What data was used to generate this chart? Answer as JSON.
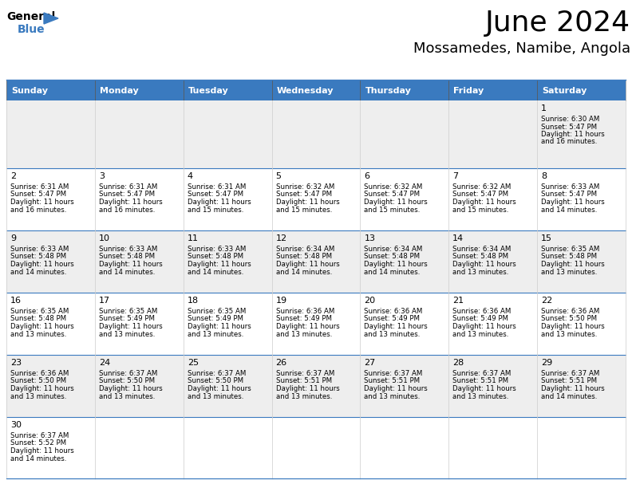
{
  "title": "June 2024",
  "subtitle": "Mossamedes, Namibe, Angola",
  "header_color": "#3a7abf",
  "header_text_color": "#ffffff",
  "days_of_week": [
    "Sunday",
    "Monday",
    "Tuesday",
    "Wednesday",
    "Thursday",
    "Friday",
    "Saturday"
  ],
  "row1_bg": "#eeeeee",
  "row2_bg": "#ffffff",
  "border_color": "#3a7abf",
  "cell_border_color": "#cccccc",
  "title_fontsize": 26,
  "subtitle_fontsize": 13,
  "header_fontsize": 8,
  "cell_fontsize": 6.2,
  "day_num_fontsize": 8,
  "calendar": [
    [
      {
        "day": null,
        "sunrise": null,
        "sunset": null,
        "daylight": null
      },
      {
        "day": null,
        "sunrise": null,
        "sunset": null,
        "daylight": null
      },
      {
        "day": null,
        "sunrise": null,
        "sunset": null,
        "daylight": null
      },
      {
        "day": null,
        "sunrise": null,
        "sunset": null,
        "daylight": null
      },
      {
        "day": null,
        "sunrise": null,
        "sunset": null,
        "daylight": null
      },
      {
        "day": null,
        "sunrise": null,
        "sunset": null,
        "daylight": null
      },
      {
        "day": 1,
        "sunrise": "6:30 AM",
        "sunset": "5:47 PM",
        "daylight": "11 hours\nand 16 minutes."
      }
    ],
    [
      {
        "day": 2,
        "sunrise": "6:31 AM",
        "sunset": "5:47 PM",
        "daylight": "11 hours\nand 16 minutes."
      },
      {
        "day": 3,
        "sunrise": "6:31 AM",
        "sunset": "5:47 PM",
        "daylight": "11 hours\nand 16 minutes."
      },
      {
        "day": 4,
        "sunrise": "6:31 AM",
        "sunset": "5:47 PM",
        "daylight": "11 hours\nand 15 minutes."
      },
      {
        "day": 5,
        "sunrise": "6:32 AM",
        "sunset": "5:47 PM",
        "daylight": "11 hours\nand 15 minutes."
      },
      {
        "day": 6,
        "sunrise": "6:32 AM",
        "sunset": "5:47 PM",
        "daylight": "11 hours\nand 15 minutes."
      },
      {
        "day": 7,
        "sunrise": "6:32 AM",
        "sunset": "5:47 PM",
        "daylight": "11 hours\nand 15 minutes."
      },
      {
        "day": 8,
        "sunrise": "6:33 AM",
        "sunset": "5:47 PM",
        "daylight": "11 hours\nand 14 minutes."
      }
    ],
    [
      {
        "day": 9,
        "sunrise": "6:33 AM",
        "sunset": "5:48 PM",
        "daylight": "11 hours\nand 14 minutes."
      },
      {
        "day": 10,
        "sunrise": "6:33 AM",
        "sunset": "5:48 PM",
        "daylight": "11 hours\nand 14 minutes."
      },
      {
        "day": 11,
        "sunrise": "6:33 AM",
        "sunset": "5:48 PM",
        "daylight": "11 hours\nand 14 minutes."
      },
      {
        "day": 12,
        "sunrise": "6:34 AM",
        "sunset": "5:48 PM",
        "daylight": "11 hours\nand 14 minutes."
      },
      {
        "day": 13,
        "sunrise": "6:34 AM",
        "sunset": "5:48 PM",
        "daylight": "11 hours\nand 14 minutes."
      },
      {
        "day": 14,
        "sunrise": "6:34 AM",
        "sunset": "5:48 PM",
        "daylight": "11 hours\nand 13 minutes."
      },
      {
        "day": 15,
        "sunrise": "6:35 AM",
        "sunset": "5:48 PM",
        "daylight": "11 hours\nand 13 minutes."
      }
    ],
    [
      {
        "day": 16,
        "sunrise": "6:35 AM",
        "sunset": "5:48 PM",
        "daylight": "11 hours\nand 13 minutes."
      },
      {
        "day": 17,
        "sunrise": "6:35 AM",
        "sunset": "5:49 PM",
        "daylight": "11 hours\nand 13 minutes."
      },
      {
        "day": 18,
        "sunrise": "6:35 AM",
        "sunset": "5:49 PM",
        "daylight": "11 hours\nand 13 minutes."
      },
      {
        "day": 19,
        "sunrise": "6:36 AM",
        "sunset": "5:49 PM",
        "daylight": "11 hours\nand 13 minutes."
      },
      {
        "day": 20,
        "sunrise": "6:36 AM",
        "sunset": "5:49 PM",
        "daylight": "11 hours\nand 13 minutes."
      },
      {
        "day": 21,
        "sunrise": "6:36 AM",
        "sunset": "5:49 PM",
        "daylight": "11 hours\nand 13 minutes."
      },
      {
        "day": 22,
        "sunrise": "6:36 AM",
        "sunset": "5:50 PM",
        "daylight": "11 hours\nand 13 minutes."
      }
    ],
    [
      {
        "day": 23,
        "sunrise": "6:36 AM",
        "sunset": "5:50 PM",
        "daylight": "11 hours\nand 13 minutes."
      },
      {
        "day": 24,
        "sunrise": "6:37 AM",
        "sunset": "5:50 PM",
        "daylight": "11 hours\nand 13 minutes."
      },
      {
        "day": 25,
        "sunrise": "6:37 AM",
        "sunset": "5:50 PM",
        "daylight": "11 hours\nand 13 minutes."
      },
      {
        "day": 26,
        "sunrise": "6:37 AM",
        "sunset": "5:51 PM",
        "daylight": "11 hours\nand 13 minutes."
      },
      {
        "day": 27,
        "sunrise": "6:37 AM",
        "sunset": "5:51 PM",
        "daylight": "11 hours\nand 13 minutes."
      },
      {
        "day": 28,
        "sunrise": "6:37 AM",
        "sunset": "5:51 PM",
        "daylight": "11 hours\nand 13 minutes."
      },
      {
        "day": 29,
        "sunrise": "6:37 AM",
        "sunset": "5:51 PM",
        "daylight": "11 hours\nand 14 minutes."
      }
    ],
    [
      {
        "day": 30,
        "sunrise": "6:37 AM",
        "sunset": "5:52 PM",
        "daylight": "11 hours\nand 14 minutes."
      },
      {
        "day": null,
        "sunrise": null,
        "sunset": null,
        "daylight": null
      },
      {
        "day": null,
        "sunrise": null,
        "sunset": null,
        "daylight": null
      },
      {
        "day": null,
        "sunrise": null,
        "sunset": null,
        "daylight": null
      },
      {
        "day": null,
        "sunrise": null,
        "sunset": null,
        "daylight": null
      },
      {
        "day": null,
        "sunrise": null,
        "sunset": null,
        "daylight": null
      },
      {
        "day": null,
        "sunrise": null,
        "sunset": null,
        "daylight": null
      }
    ]
  ]
}
